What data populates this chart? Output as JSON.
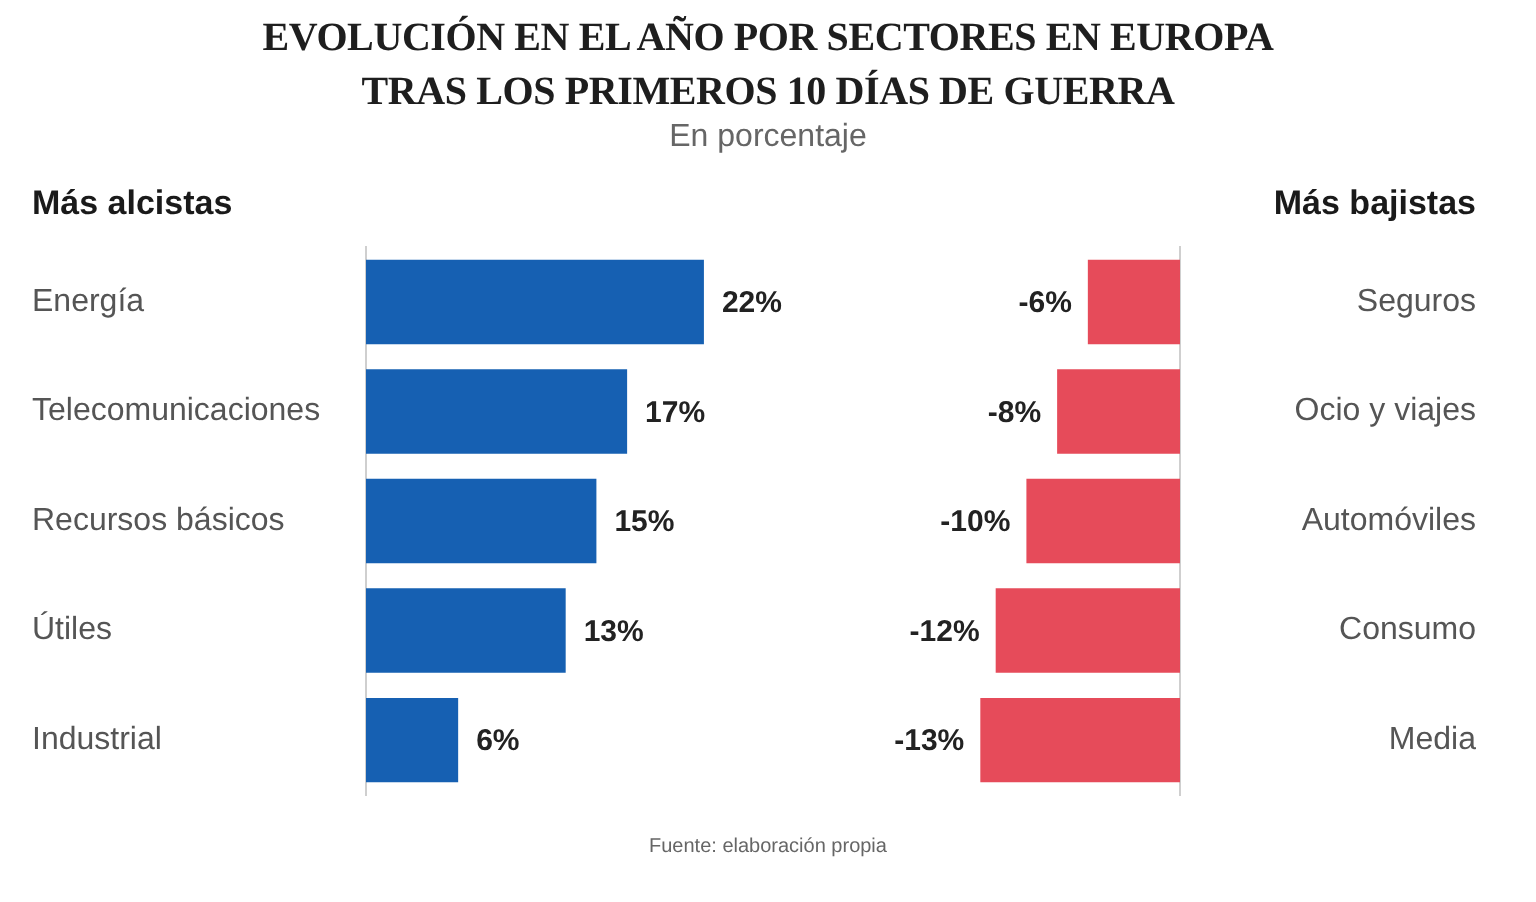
{
  "chart_data": [
    {
      "type": "other",
      "title": "EVOLUCIÓN EN EL AÑO POR SECTORES EN EUROPA TRAS LOS PRIMEROS 10 DÍAS DE GUERRA",
      "subtitle": "En porcentaje",
      "annotations": [
        "Fuente: elaboración propia"
      ]
    },
    {
      "type": "bar",
      "orientation": "horizontal",
      "title": "Más alcistas",
      "categories": [
        "Energía",
        "Telecomunicaciones",
        "Recursos básicos",
        "Útiles",
        "Industrial"
      ],
      "values": [
        22,
        17,
        15,
        13,
        6
      ],
      "value_labels": [
        "22%",
        "17%",
        "15%",
        "13%",
        "6%"
      ],
      "color": "#1660b2",
      "tick_labels": "y"
    },
    {
      "type": "bar",
      "orientation": "horizontal",
      "title": "Más bajistas",
      "categories": [
        "Seguros",
        "Ocio y viajes",
        "Automóviles",
        "Consumo",
        "Media"
      ],
      "values": [
        -6,
        -8,
        -10,
        -12,
        -13
      ],
      "value_labels": [
        "-6%",
        "-8%",
        "-10%",
        "-12%",
        "-13%"
      ],
      "color": "#e64b5a",
      "tick_labels": "y"
    }
  ]
}
